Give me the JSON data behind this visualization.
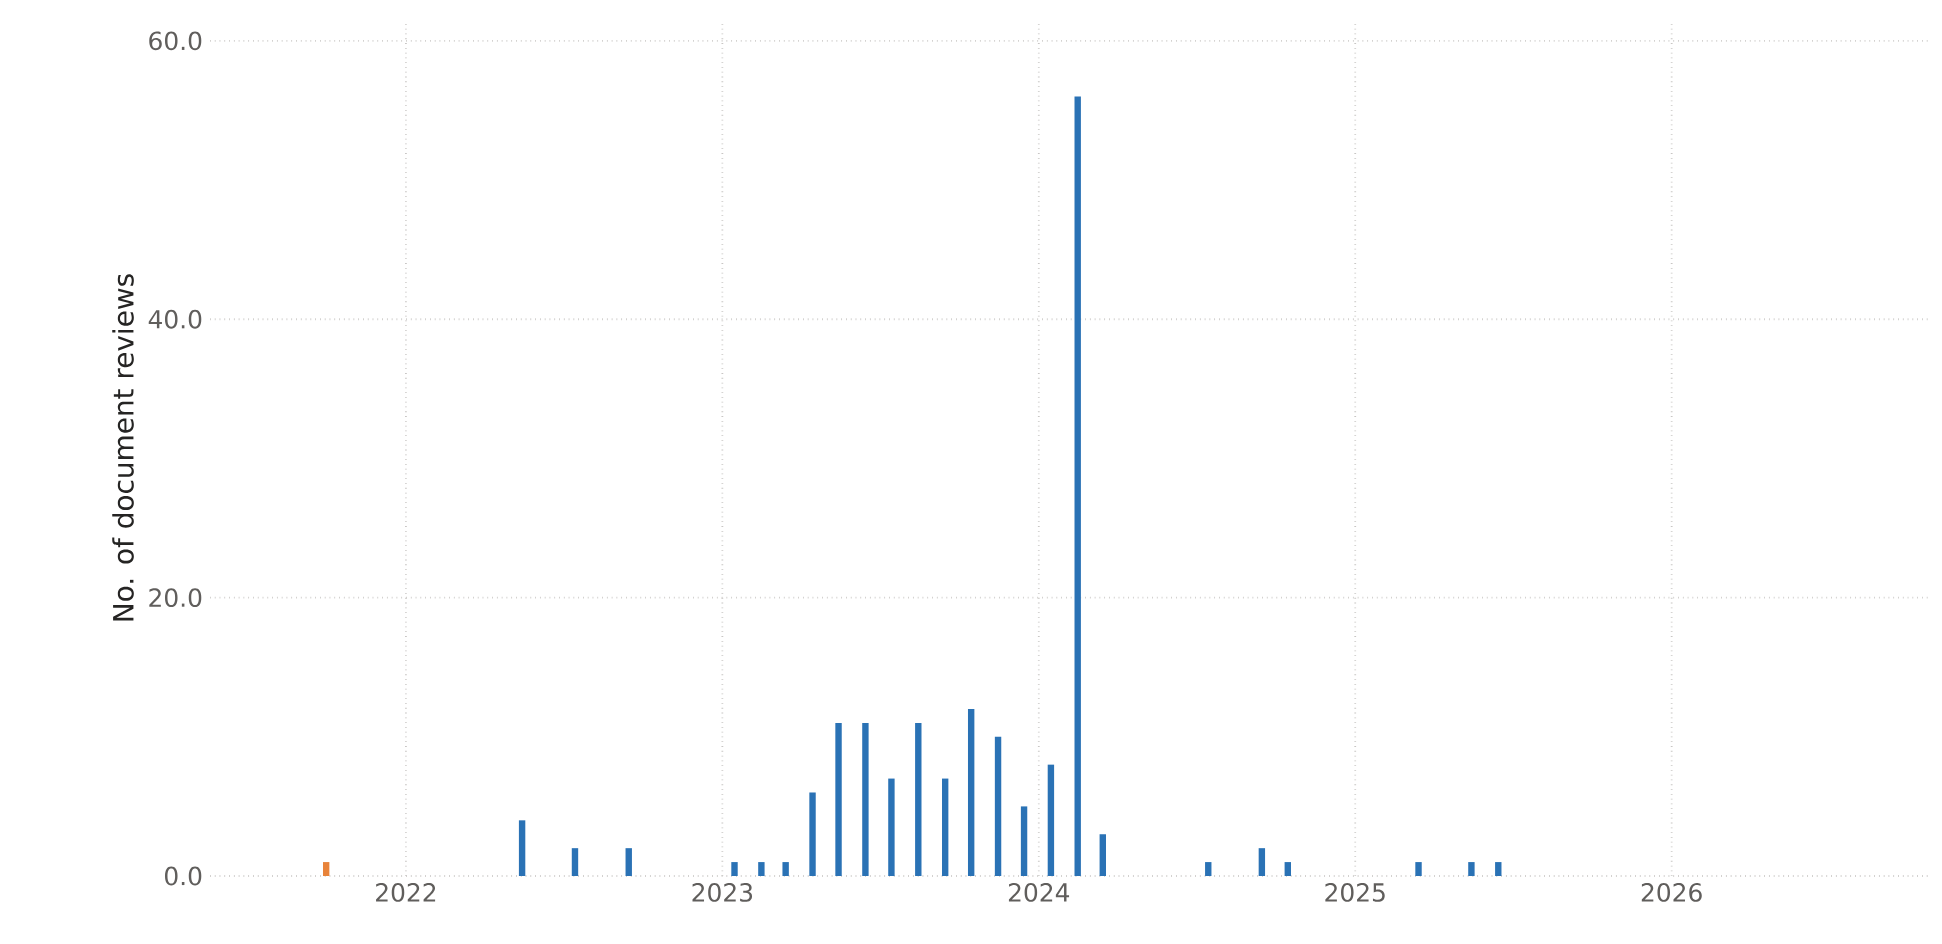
{
  "chart_data": {
    "type": "bar",
    "ylabel": "No. of document reviews",
    "series": [
      {
        "color": "#e8833a",
        "x": [
          "2021-10-01"
        ],
        "values": [
          1
        ]
      },
      {
        "color": "#2a72b5",
        "x": [
          "2022-05-15",
          "2022-07-15",
          "2022-09-15",
          "2023-01-15",
          "2023-02-15",
          "2023-03-15",
          "2023-04-15",
          "2023-05-15",
          "2023-06-15",
          "2023-07-15",
          "2023-08-15",
          "2023-09-15",
          "2023-10-15",
          "2023-11-15",
          "2023-12-15",
          "2024-01-15",
          "2024-02-15",
          "2024-03-15",
          "2024-07-15",
          "2024-09-15",
          "2024-10-15",
          "2025-03-15",
          "2025-05-15",
          "2025-06-15"
        ],
        "values": [
          4,
          2,
          2,
          1,
          1,
          1,
          6,
          11,
          11,
          7,
          11,
          7,
          12,
          10,
          5,
          8,
          56,
          3,
          1,
          2,
          1,
          1,
          1,
          1
        ]
      }
    ],
    "xlim": [
      "2021-05-20",
      "2026-10-26"
    ],
    "xticks": [
      "2022",
      "2023",
      "2024",
      "2025",
      "2026"
    ],
    "ylim": [
      0,
      61.5
    ],
    "yticks": [
      {
        "value": 0,
        "label": "0.0"
      },
      {
        "value": 20,
        "label": "20.0"
      },
      {
        "value": 40,
        "label": "40.0"
      },
      {
        "value": 60,
        "label": "60.0"
      }
    ],
    "grid": true
  }
}
